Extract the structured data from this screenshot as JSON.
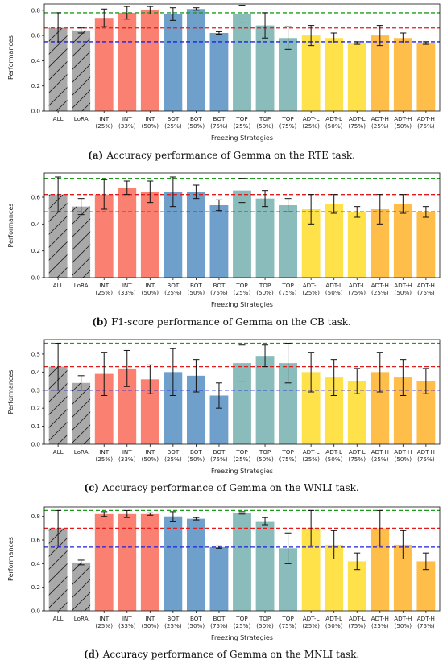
{
  "chart_data": [
    {
      "type": "bar",
      "panel_label": "a",
      "caption": "Accuracy performance of Gemma on the RTE task.",
      "ylabel": "Performances",
      "xlabel": "Freezing Strategies",
      "ylim": [
        0.0,
        0.85
      ],
      "yticks": [
        "0.0",
        "0.2",
        "0.4",
        "0.6",
        "0.8"
      ],
      "categories": [
        "ALL",
        "LoRA",
        "INT\n(25%)",
        "INT\n(33%)",
        "INT\n(50%)",
        "BOT\n(25%)",
        "BOT\n(50%)",
        "BOT\n(75%)",
        "TOP\n(25%)",
        "TOP\n(50%)",
        "TOP\n(75%)",
        "ADT-L\n(25%)",
        "ADT-L\n(50%)",
        "ADT-L\n(75%)",
        "ADT-H\n(25%)",
        "ADT-H\n(50%)",
        "ADT-H\n(75%)"
      ],
      "values": [
        0.66,
        0.64,
        0.74,
        0.78,
        0.8,
        0.77,
        0.81,
        0.62,
        0.77,
        0.68,
        0.58,
        0.6,
        0.58,
        0.54,
        0.6,
        0.58,
        0.54
      ],
      "errors": [
        0.12,
        0.02,
        0.07,
        0.05,
        0.03,
        0.05,
        0.01,
        0.01,
        0.07,
        0.1,
        0.09,
        0.08,
        0.04,
        0.01,
        0.08,
        0.04,
        0.01
      ],
      "reference_lines": [
        0.78,
        0.66,
        0.55
      ]
    },
    {
      "type": "bar",
      "panel_label": "b",
      "caption": "F1-score performance of Gemma on the CB task.",
      "ylabel": "Performances",
      "xlabel": "Freezing Strategies",
      "ylim": [
        0.0,
        0.78
      ],
      "yticks": [
        "0.0",
        "0.2",
        "0.4",
        "0.6"
      ],
      "categories": [
        "ALL",
        "LoRA",
        "INT\n(25%)",
        "INT\n(33%)",
        "INT\n(50%)",
        "BOT\n(25%)",
        "BOT\n(50%)",
        "BOT\n(75%)",
        "TOP\n(25%)",
        "TOP\n(50%)",
        "TOP\n(75%)",
        "ADT-L\n(25%)",
        "ADT-L\n(50%)",
        "ADT-L\n(75%)",
        "ADT-H\n(25%)",
        "ADT-H\n(50%)",
        "ADT-H\n(75%)"
      ],
      "values": [
        0.62,
        0.53,
        0.62,
        0.67,
        0.64,
        0.64,
        0.64,
        0.54,
        0.65,
        0.59,
        0.54,
        0.51,
        0.55,
        0.49,
        0.51,
        0.55,
        0.49
      ],
      "errors": [
        0.13,
        0.06,
        0.11,
        0.05,
        0.08,
        0.11,
        0.05,
        0.04,
        0.09,
        0.06,
        0.05,
        0.11,
        0.07,
        0.04,
        0.11,
        0.07,
        0.04
      ],
      "reference_lines": [
        0.74,
        0.62,
        0.49
      ]
    },
    {
      "type": "bar",
      "panel_label": "c",
      "caption": "Accuracy performance of Gemma on the WNLI task.",
      "ylabel": "Performances",
      "xlabel": "Freezing Strategies",
      "ylim": [
        0.0,
        0.58
      ],
      "yticks": [
        "0.0",
        "0.1",
        "0.2",
        "0.3",
        "0.4",
        "0.5"
      ],
      "categories": [
        "ALL",
        "LoRA",
        "INT\n(25%)",
        "INT\n(33%)",
        "INT\n(50%)",
        "BOT\n(25%)",
        "BOT\n(50%)",
        "BOT\n(75%)",
        "TOP\n(25%)",
        "TOP\n(50%)",
        "TOP\n(75%)",
        "ADT-L\n(25%)",
        "ADT-L\n(50%)",
        "ADT-L\n(75%)",
        "ADT-H\n(25%)",
        "ADT-H\n(50%)",
        "ADT-H\n(75%)"
      ],
      "values": [
        0.43,
        0.34,
        0.39,
        0.42,
        0.36,
        0.4,
        0.38,
        0.27,
        0.45,
        0.49,
        0.45,
        0.4,
        0.37,
        0.35,
        0.4,
        0.37,
        0.35
      ],
      "errors": [
        0.13,
        0.04,
        0.12,
        0.1,
        0.08,
        0.13,
        0.09,
        0.07,
        0.1,
        0.06,
        0.11,
        0.11,
        0.1,
        0.07,
        0.11,
        0.1,
        0.07
      ],
      "reference_lines": [
        0.56,
        0.43,
        0.3
      ]
    },
    {
      "type": "bar",
      "panel_label": "d",
      "caption": "Accuracy performance of Gemma on the MNLI task.",
      "ylabel": "Performances",
      "xlabel": "Freezing Strategies",
      "ylim": [
        0.0,
        0.88
      ],
      "yticks": [
        "0.0",
        "0.2",
        "0.4",
        "0.6",
        "0.8"
      ],
      "categories": [
        "ALL",
        "LoRA",
        "INT\n(25%)",
        "INT\n(33%)",
        "INT\n(50%)",
        "BOT\n(25%)",
        "BOT\n(50%)",
        "BOT\n(75%)",
        "TOP\n(25%)",
        "TOP\n(50%)",
        "TOP\n(75%)",
        "ADT-L\n(25%)",
        "ADT-L\n(50%)",
        "ADT-L\n(75%)",
        "ADT-H\n(25%)",
        "ADT-H\n(50%)",
        "ADT-H\n(75%)"
      ],
      "values": [
        0.7,
        0.41,
        0.82,
        0.82,
        0.82,
        0.8,
        0.78,
        0.54,
        0.83,
        0.76,
        0.53,
        0.7,
        0.56,
        0.42,
        0.7,
        0.56,
        0.42
      ],
      "errors": [
        0.15,
        0.02,
        0.02,
        0.03,
        0.01,
        0.04,
        0.01,
        0.01,
        0.01,
        0.03,
        0.13,
        0.15,
        0.12,
        0.07,
        0.15,
        0.12,
        0.07
      ],
      "reference_lines": [
        0.85,
        0.7,
        0.54
      ]
    }
  ],
  "colors": {
    "ALL": "#a9a9a9",
    "LoRA": "#a9a9a9",
    "INT": "#fa8072",
    "BOT": "#6fa0cc",
    "TOP": "#89bcba",
    "ADT-L": "#ffe14a",
    "ADT-H": "#ffbe4a",
    "ref_top": "#1f9a1f",
    "ref_mid": "#e31a1c",
    "ref_low": "#1f1fdd"
  }
}
